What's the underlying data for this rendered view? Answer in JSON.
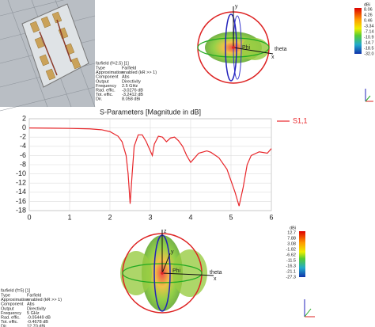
{
  "chart_data": {
    "type": "line",
    "title": "S-Parameters [Magnitude in dB]",
    "x": [
      0,
      0.5,
      1.0,
      1.5,
      1.8,
      2.0,
      2.2,
      2.3,
      2.4,
      2.45,
      2.5,
      2.55,
      2.6,
      2.7,
      2.8,
      2.9,
      3.0,
      3.05,
      3.1,
      3.2,
      3.3,
      3.4,
      3.5,
      3.6,
      3.7,
      3.8,
      3.9,
      4.0,
      4.1,
      4.2,
      4.4,
      4.5,
      4.7,
      4.9,
      5.1,
      5.2,
      5.3,
      5.4,
      5.5,
      5.7,
      5.9,
      6.0
    ],
    "series": [
      {
        "name": "S1,1",
        "color": "#e8262a",
        "values": [
          0.0,
          -0.05,
          -0.1,
          -0.2,
          -0.4,
          -0.8,
          -1.8,
          -3.0,
          -6.0,
          -10.0,
          -16.5,
          -10.0,
          -4.0,
          -1.5,
          -1.5,
          -3.0,
          -5.0,
          -6.0,
          -3.5,
          -1.8,
          -2.0,
          -3.0,
          -2.2,
          -2.0,
          -2.8,
          -4.0,
          -6.0,
          -7.5,
          -6.5,
          -5.5,
          -5.0,
          -5.3,
          -6.5,
          -9.0,
          -14.0,
          -17.0,
          -13.0,
          -8.0,
          -6.0,
          -5.2,
          -5.5,
          -4.5
        ]
      }
    ],
    "xlim": [
      0,
      6
    ],
    "xticks": [
      0,
      1,
      2,
      3,
      4,
      5,
      6
    ],
    "ylim": [
      -18,
      2
    ],
    "yticks": [
      2,
      0,
      -2,
      -4,
      -6,
      -8,
      -10,
      -12,
      -14,
      -16,
      -18
    ],
    "grid": true,
    "legend": "right"
  },
  "farfield_top": {
    "axes": [
      "y",
      "x",
      "Phi",
      "theta"
    ],
    "info": {
      "title": "farfield (f=2.5) [1]",
      "rows": [
        [
          "Type",
          "Farfield"
        ],
        [
          "Approximation",
          "enabled (kR >> 1)"
        ],
        [
          "Component",
          "Abs"
        ],
        [
          "Output",
          "Directivity"
        ],
        [
          "Frequency",
          "2.5 GHz"
        ],
        [
          "Rad. effic.",
          "-3.0276 dB"
        ],
        [
          "Tot. effic.",
          "-3.2412 dB"
        ],
        [
          "Dir.",
          "8.058 dBi"
        ]
      ]
    },
    "colorbar": {
      "unit": "dBi",
      "labels": [
        "8.06",
        "4.26",
        "0.46",
        "-3.34",
        "-7.14",
        "-10.9",
        "-14.7",
        "-18.5",
        "-32.0"
      ]
    }
  },
  "farfield_bottom": {
    "axes": [
      "z",
      "y",
      "x",
      "Phi",
      "theta"
    ],
    "info": {
      "title": "farfield (f=5) [1]",
      "rows": [
        [
          "Type",
          "Farfield"
        ],
        [
          "Approximation",
          "enabled (kR >> 1)"
        ],
        [
          "Component",
          "Abs"
        ],
        [
          "Output",
          "Directivity"
        ],
        [
          "Frequency",
          "5 GHz"
        ],
        [
          "Rad. effic.",
          "-0.05449 dB"
        ],
        [
          "Tot. effic.",
          "-0.4678 dB"
        ],
        [
          "Dir.",
          "12.70 dBi"
        ]
      ]
    },
    "colorbar": {
      "unit": "dBi",
      "labels": [
        "12.7",
        "7.88",
        "3.08",
        "-1.82",
        "-6.62",
        "-11.5",
        "-16.3",
        "-21.1",
        "-27.3"
      ]
    }
  }
}
